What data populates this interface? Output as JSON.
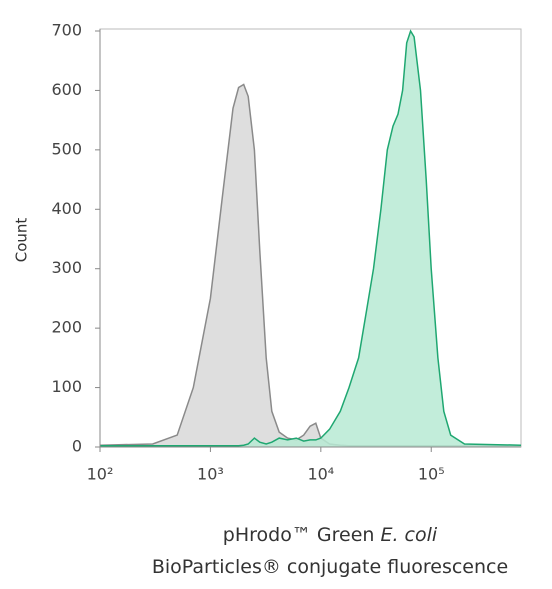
{
  "chart_data": {
    "type": "area",
    "ylabel": "Count",
    "xlabel": [
      [
        "pHrodo™ Green ",
        "E. coli"
      ],
      [
        "BioParticles® conjugate fluorescence"
      ]
    ],
    "xscale": "log",
    "xlim": [
      100,
      650000
    ],
    "ylim": [
      0,
      700
    ],
    "xticks": [
      {
        "value": 100,
        "label": "10²"
      },
      {
        "value": 1000,
        "label": "10³"
      },
      {
        "value": 10000,
        "label": "10⁴"
      },
      {
        "value": 100000,
        "label": "10⁵"
      }
    ],
    "yticks": [
      0,
      100,
      200,
      300,
      400,
      500,
      600,
      700
    ],
    "x": [
      100,
      300,
      500,
      700,
      1000,
      1300,
      1600,
      1800,
      2000,
      2200,
      2500,
      2800,
      3200,
      3600,
      4200,
      5000,
      6000,
      7000,
      8000,
      9000,
      10000,
      12000,
      15000,
      18000,
      22000,
      26000,
      30000,
      35000,
      40000,
      45000,
      50000,
      55000,
      60000,
      65000,
      70000,
      80000,
      90000,
      100000,
      115000,
      130000,
      150000,
      200000,
      650000
    ],
    "series": [
      {
        "color": "#d8d8d8",
        "edge": "#8a8a8a",
        "values": [
          3,
          5,
          20,
          100,
          250,
          430,
          570,
          605,
          610,
          590,
          500,
          330,
          150,
          60,
          25,
          15,
          12,
          20,
          35,
          40,
          15,
          5,
          3,
          2,
          2,
          2,
          2,
          2,
          2,
          2,
          2,
          2,
          2,
          2,
          2,
          2,
          2,
          2,
          2,
          2,
          2,
          2,
          2
        ]
      },
      {
        "color": "#b7ead4",
        "edge": "#1fa771",
        "values": [
          2,
          2,
          2,
          2,
          2,
          2,
          2,
          2,
          3,
          5,
          15,
          8,
          5,
          8,
          15,
          12,
          15,
          10,
          12,
          12,
          15,
          30,
          60,
          100,
          150,
          230,
          300,
          400,
          500,
          540,
          560,
          600,
          680,
          700,
          690,
          600,
          450,
          300,
          150,
          60,
          20,
          5,
          3
        ]
      }
    ]
  }
}
